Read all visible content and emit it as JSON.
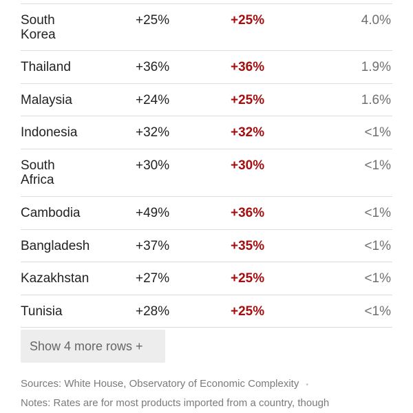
{
  "table": {
    "rows": [
      {
        "country": "South Korea",
        "rate": "+25%",
        "new_rate": "+25%",
        "share": "4.0%"
      },
      {
        "country": "Thailand",
        "rate": "+36%",
        "new_rate": "+36%",
        "share": "1.9%"
      },
      {
        "country": "Malaysia",
        "rate": "+24%",
        "new_rate": "+25%",
        "share": "1.6%"
      },
      {
        "country": "Indonesia",
        "rate": "+32%",
        "new_rate": "+32%",
        "share": "<1%"
      },
      {
        "country": "South Africa",
        "rate": "+30%",
        "new_rate": "+30%",
        "share": "<1%"
      },
      {
        "country": "Cambodia",
        "rate": "+49%",
        "new_rate": "+36%",
        "share": "<1%"
      },
      {
        "country": "Bangladesh",
        "rate": "+37%",
        "new_rate": "+35%",
        "share": "<1%"
      },
      {
        "country": "Kazakhstan",
        "rate": "+27%",
        "new_rate": "+25%",
        "share": "<1%"
      },
      {
        "country": "Tunisia",
        "rate": "+28%",
        "new_rate": "+25%",
        "share": "<1%"
      }
    ]
  },
  "show_more_label": "Show 4 more rows +",
  "footer": {
    "sources": "Sources: White House, Observatory of Economic Complexity",
    "separator": "•",
    "notes": "Notes: Rates are for most products imported from a country, though"
  },
  "colors": {
    "new_rate": "#a40e0e",
    "share": "#6f6f6f",
    "rule": "#dcdcdc"
  }
}
